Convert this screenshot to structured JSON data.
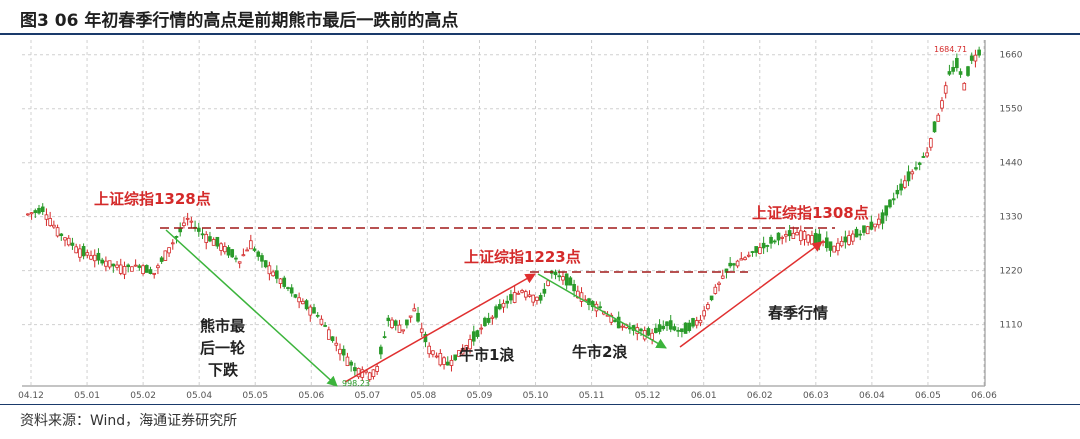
{
  "title": "图3  06 年初春季行情的高点是前期熊市最后一跌前的高点",
  "source": "资料来源：Wind，海通证券研究所",
  "chart_data": {
    "type": "candlestick",
    "y_ticks": [
      1110,
      1220,
      1330,
      1440,
      1550,
      1660
    ],
    "ylim": [
      985,
      1690
    ],
    "x_ticks": [
      "04.12",
      "05.01",
      "05.02",
      "05.04",
      "05.05",
      "05.06",
      "05.07",
      "05.08",
      "05.09",
      "05.10",
      "05.11",
      "05.12",
      "06.01",
      "06.02",
      "06.03",
      "06.04",
      "06.05",
      "06.06"
    ],
    "price_path": [
      [
        0,
        1335
      ],
      [
        4,
        1345
      ],
      [
        8,
        1300
      ],
      [
        14,
        1260
      ],
      [
        20,
        1240
      ],
      [
        25,
        1225
      ],
      [
        30,
        1230
      ],
      [
        34,
        1215
      ],
      [
        38,
        1265
      ],
      [
        43,
        1325
      ],
      [
        47,
        1295
      ],
      [
        52,
        1270
      ],
      [
        57,
        1240
      ],
      [
        60,
        1275
      ],
      [
        63,
        1240
      ],
      [
        68,
        1200
      ],
      [
        73,
        1160
      ],
      [
        78,
        1130
      ],
      [
        83,
        1070
      ],
      [
        88,
        1020
      ],
      [
        92,
        1010
      ],
      [
        94,
        1020
      ],
      [
        97,
        1120
      ],
      [
        101,
        1100
      ],
      [
        104,
        1140
      ],
      [
        108,
        1060
      ],
      [
        113,
        1030
      ],
      [
        118,
        1065
      ],
      [
        123,
        1110
      ],
      [
        128,
        1150
      ],
      [
        133,
        1180
      ],
      [
        138,
        1160
      ],
      [
        141,
        1215
      ],
      [
        145,
        1200
      ],
      [
        150,
        1160
      ],
      [
        154,
        1145
      ],
      [
        158,
        1115
      ],
      [
        163,
        1100
      ],
      [
        168,
        1090
      ],
      [
        172,
        1110
      ],
      [
        176,
        1095
      ],
      [
        181,
        1120
      ],
      [
        185,
        1180
      ],
      [
        189,
        1230
      ],
      [
        193,
        1245
      ],
      [
        197,
        1265
      ],
      [
        203,
        1290
      ],
      [
        208,
        1295
      ],
      [
        212,
        1285
      ],
      [
        217,
        1265
      ],
      [
        222,
        1290
      ],
      [
        225,
        1300
      ],
      [
        230,
        1325
      ],
      [
        234,
        1380
      ],
      [
        238,
        1420
      ],
      [
        242,
        1460
      ],
      [
        244,
        1510
      ],
      [
        246,
        1560
      ],
      [
        248,
        1620
      ],
      [
        250,
        1640
      ],
      [
        252,
        1600
      ],
      [
        254,
        1650
      ],
      [
        256,
        1665
      ]
    ],
    "n_candles": 257,
    "annotations": {
      "peak1": "上证综指1328点",
      "peak2": "上证综指1223点",
      "peak3": "上证综指1308点",
      "low_label": "998.23",
      "high_label": "1684.71",
      "bear": [
        "熊市最",
        "后一轮",
        "下跌"
      ],
      "bull1": "牛市1浪",
      "bull2": "牛市2浪",
      "spring": "春季行情"
    },
    "colors": {
      "up": "#d42a2a",
      "down": "#2a9a2a",
      "arrow_red": "#e03030",
      "arrow_green": "#3cb43c",
      "grid": "#d0d0d0"
    }
  }
}
